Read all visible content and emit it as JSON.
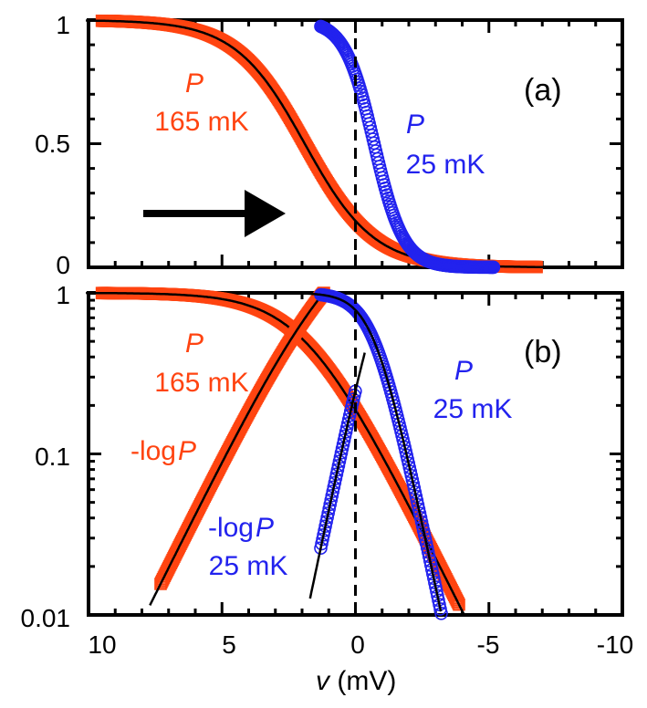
{
  "colors": {
    "orange": "#ff4411",
    "blue": "#2222ee",
    "black": "#000000"
  },
  "xlabel": {
    "var": "v",
    "unit": " (mV)"
  },
  "chart_data": [
    {
      "type": "scatter",
      "panel_label": "(a)",
      "x_ticks": [
        "10",
        "5",
        "0",
        "-5",
        "-10"
      ],
      "y_ticks": [
        "1",
        "0.5",
        "0"
      ],
      "xlim": [
        10,
        -10
      ],
      "ylim": [
        0,
        1
      ],
      "yscale": "linear",
      "annotations": [
        {
          "symbol": "P",
          "temp": "165 mK",
          "color": "orange"
        },
        {
          "symbol": "P",
          "temp": "25 mK",
          "color": "blue"
        }
      ],
      "arrow": "right",
      "series": [
        {
          "marker": "square",
          "color": "orange",
          "fit_line": true,
          "x_start": 9.5,
          "x_end": -6.8,
          "center": 1.9,
          "width": 1.3
        },
        {
          "marker": "circle",
          "color": "blue",
          "fit_line": false,
          "x_start": 1.3,
          "x_end": -5.2,
          "center": -0.7,
          "width": 0.55
        }
      ],
      "vline_x": 0
    },
    {
      "type": "scatter",
      "panel_label": "(b)",
      "x_ticks": [
        "10",
        "5",
        "0",
        "-5",
        "-10"
      ],
      "y_ticks": [
        "1",
        "0.1",
        "0.01"
      ],
      "xlim": [
        10,
        -10
      ],
      "ylim": [
        0.01,
        1
      ],
      "yscale": "log",
      "annotations": [
        {
          "symbol": "P",
          "temp": "165 mK",
          "color": "orange"
        },
        {
          "symbol": "P",
          "temp": "25 mK",
          "color": "blue"
        },
        {
          "prefix": "-log",
          "symbol": "P",
          "temp": "",
          "color": "orange"
        },
        {
          "prefix": "-log",
          "symbol": "P",
          "temp": "25 mK",
          "color": "blue"
        }
      ],
      "series": [
        {
          "marker": "square",
          "color": "orange",
          "fit_line": true,
          "kind": "P",
          "x_start": 9.5,
          "x_end": -3.9,
          "center": 1.9,
          "width": 1.3
        },
        {
          "marker": "square",
          "color": "orange",
          "fit_line": true,
          "kind": "-logP",
          "x_start": 7.3,
          "x_end": 0.1,
          "center": 1.9,
          "width": 1.3
        },
        {
          "marker": "circle",
          "color": "blue",
          "fit_line": true,
          "kind": "P",
          "x_start": 1.3,
          "x_end": -5.1,
          "center": -0.7,
          "width": 0.55
        },
        {
          "marker": "circle",
          "color": "blue",
          "fit_line": true,
          "kind": "-logP",
          "x_start": 1.3,
          "x_end": 0.0,
          "center": -0.7,
          "width": 0.55
        }
      ],
      "vline_x": 0
    }
  ]
}
